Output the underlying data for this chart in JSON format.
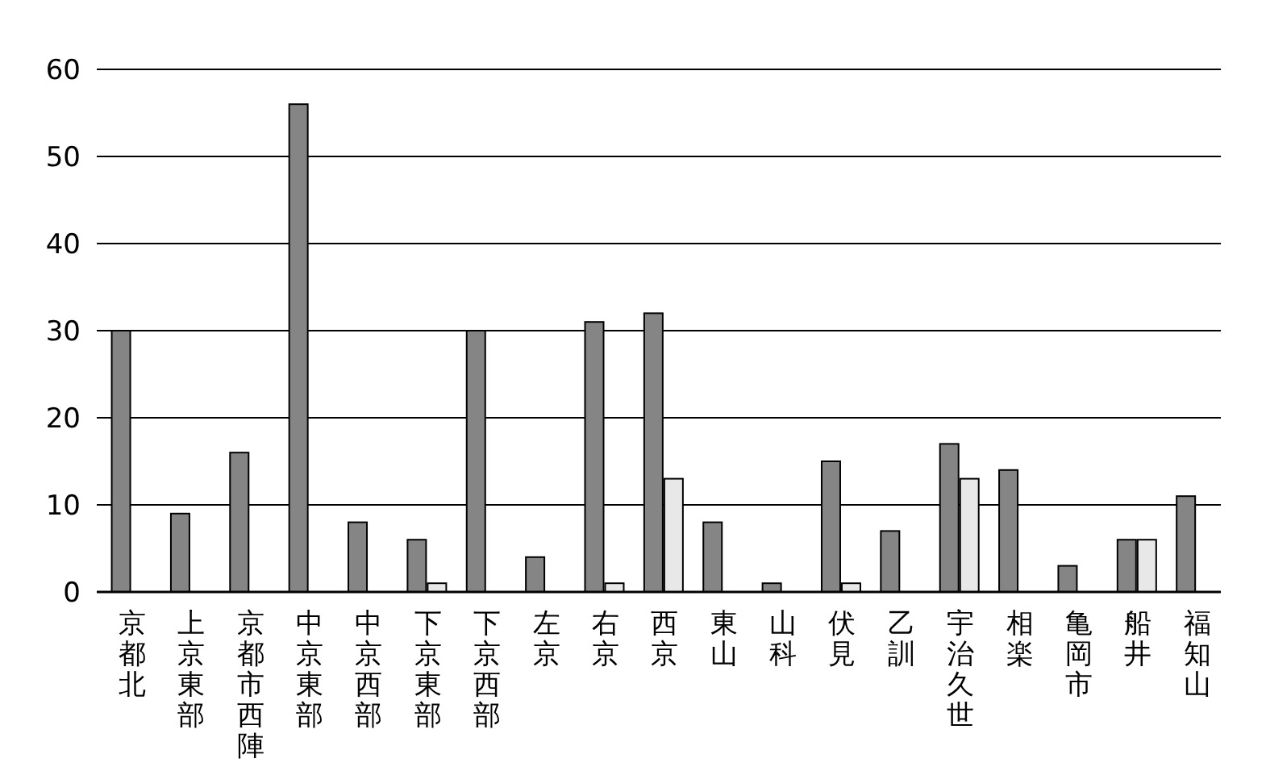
{
  "chart_data": {
    "type": "bar",
    "categories": [
      "京都北",
      "上京東部",
      "京都市西陣",
      "中京東部",
      "中京西部",
      "下京東部",
      "下京西部",
      "左京",
      "右京",
      "西京",
      "東山",
      "山科",
      "伏見",
      "乙訓",
      "宇治久世",
      "相楽",
      "亀岡市",
      "船井",
      "福知山"
    ],
    "series": [
      {
        "color": "#858585",
        "values": [
          30,
          9,
          16,
          56,
          8,
          6,
          30,
          4,
          31,
          32,
          8,
          1,
          15,
          7,
          17,
          14,
          3,
          6,
          11
        ]
      },
      {
        "color": "#e8e8e8",
        "values": [
          null,
          null,
          null,
          null,
          null,
          1,
          null,
          null,
          1,
          13,
          null,
          null,
          1,
          null,
          13,
          null,
          null,
          6,
          null
        ]
      }
    ],
    "ylim": [
      0,
      60
    ],
    "yticks": [
      0,
      10,
      20,
      30,
      40,
      50,
      60
    ],
    "grid": "y"
  }
}
